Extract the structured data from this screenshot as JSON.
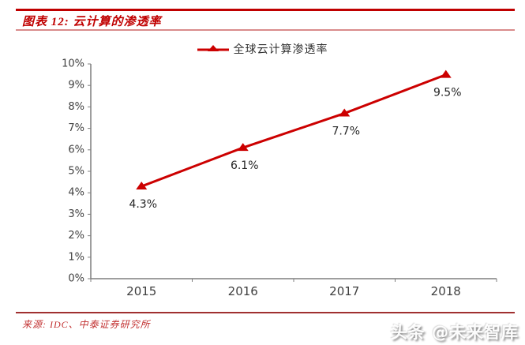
{
  "header": {
    "title": "图表 12:  云计算的渗透率"
  },
  "chart_data": {
    "type": "line",
    "title": "",
    "legend": [
      {
        "label": "全球云计算渗透率"
      }
    ],
    "legend_position": "top-center",
    "categories": [
      "2015",
      "2016",
      "2017",
      "2018"
    ],
    "series": [
      {
        "name": "全球云计算渗透率",
        "values": [
          4.3,
          6.1,
          7.7,
          9.5
        ],
        "data_labels": [
          "4.3%",
          "6.1%",
          "7.7%",
          "9.5%"
        ],
        "marker": "triangle-up"
      }
    ],
    "xlabel": "",
    "ylabel": "",
    "ylim": [
      0,
      10
    ],
    "y_tick_labels": [
      "0%",
      "1%",
      "2%",
      "3%",
      "4%",
      "5%",
      "6%",
      "7%",
      "8%",
      "9%",
      "10%"
    ],
    "grid": false
  },
  "footer": {
    "source": "来源:  IDC、中泰证券研究所",
    "watermark": "头条 @未来智库"
  },
  "colors": {
    "accent_red": "#c00000",
    "line_red": "#cc0000",
    "divider_light": "#d98c8c",
    "axis_gray": "#7f7f7f",
    "tick_label_gray": "#3f3f3f",
    "data_label_dark": "#262626"
  }
}
